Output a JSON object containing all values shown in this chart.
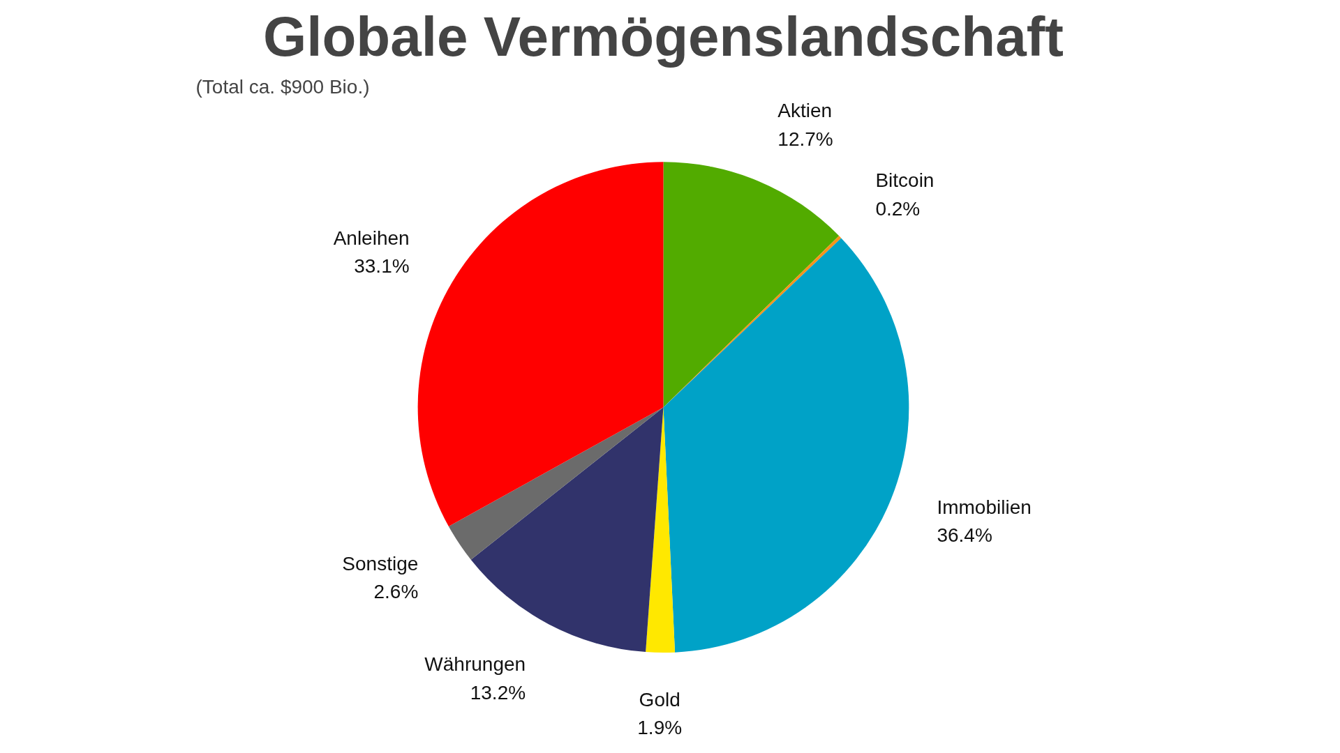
{
  "chart_data": {
    "type": "pie",
    "title": "Globale Vermögenslandschaft",
    "subtitle": "(Total ca. $900 Bio.)",
    "categories": [
      "Aktien",
      "Bitcoin",
      "Immobilien",
      "Gold",
      "Währungen",
      "Sonstige",
      "Anleihen"
    ],
    "values": [
      12.7,
      0.2,
      36.4,
      1.9,
      13.2,
      2.6,
      33.1
    ],
    "value_labels": [
      "12.7%",
      "0.2%",
      "36.4%",
      "1.9%",
      "13.2%",
      "2.6%",
      "33.1%"
    ],
    "colors": [
      "#52ab00",
      "#f7931a",
      "#00a2c7",
      "#ffe800",
      "#31336b",
      "#6b6b6b",
      "#ff0000"
    ],
    "legend": false
  }
}
